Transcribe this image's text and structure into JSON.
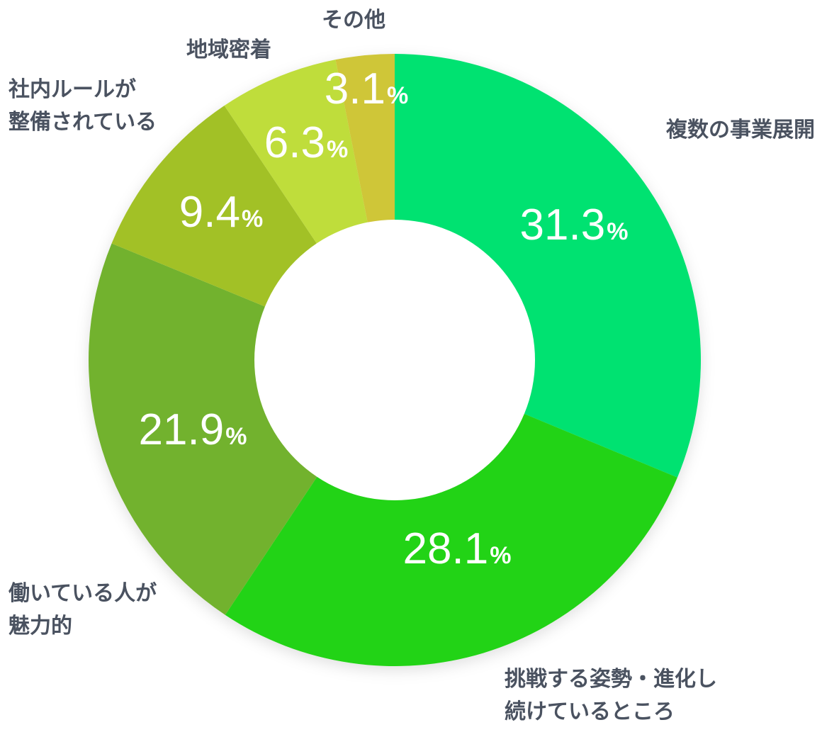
{
  "chart_data": {
    "type": "pie",
    "variant": "donut",
    "title": "",
    "unit": "%",
    "start_angle_deg": 0,
    "direction": "clockwise",
    "slices": [
      {
        "label_lines": [
          "複数の事業展開"
        ],
        "value": 31.3,
        "value_text": "31.3",
        "color": "#00e271"
      },
      {
        "label_lines": [
          "挑戦する姿勢・進化し",
          "続けているところ"
        ],
        "value": 28.1,
        "value_text": "28.1",
        "color": "#24d313"
      },
      {
        "label_lines": [
          "働いている人が",
          "魅力的"
        ],
        "value": 21.9,
        "value_text": "21.9",
        "color": "#72b22d"
      },
      {
        "label_lines": [
          "社内ルールが",
          "整備されている"
        ],
        "value": 9.4,
        "value_text": "9.4",
        "color": "#a2c126"
      },
      {
        "label_lines": [
          "地域密着"
        ],
        "value": 6.3,
        "value_text": "6.3",
        "color": "#bfdd3b"
      },
      {
        "label_lines": [
          "その他"
        ],
        "value": 3.1,
        "value_text": "3.1",
        "color": "#cfc637"
      }
    ]
  }
}
